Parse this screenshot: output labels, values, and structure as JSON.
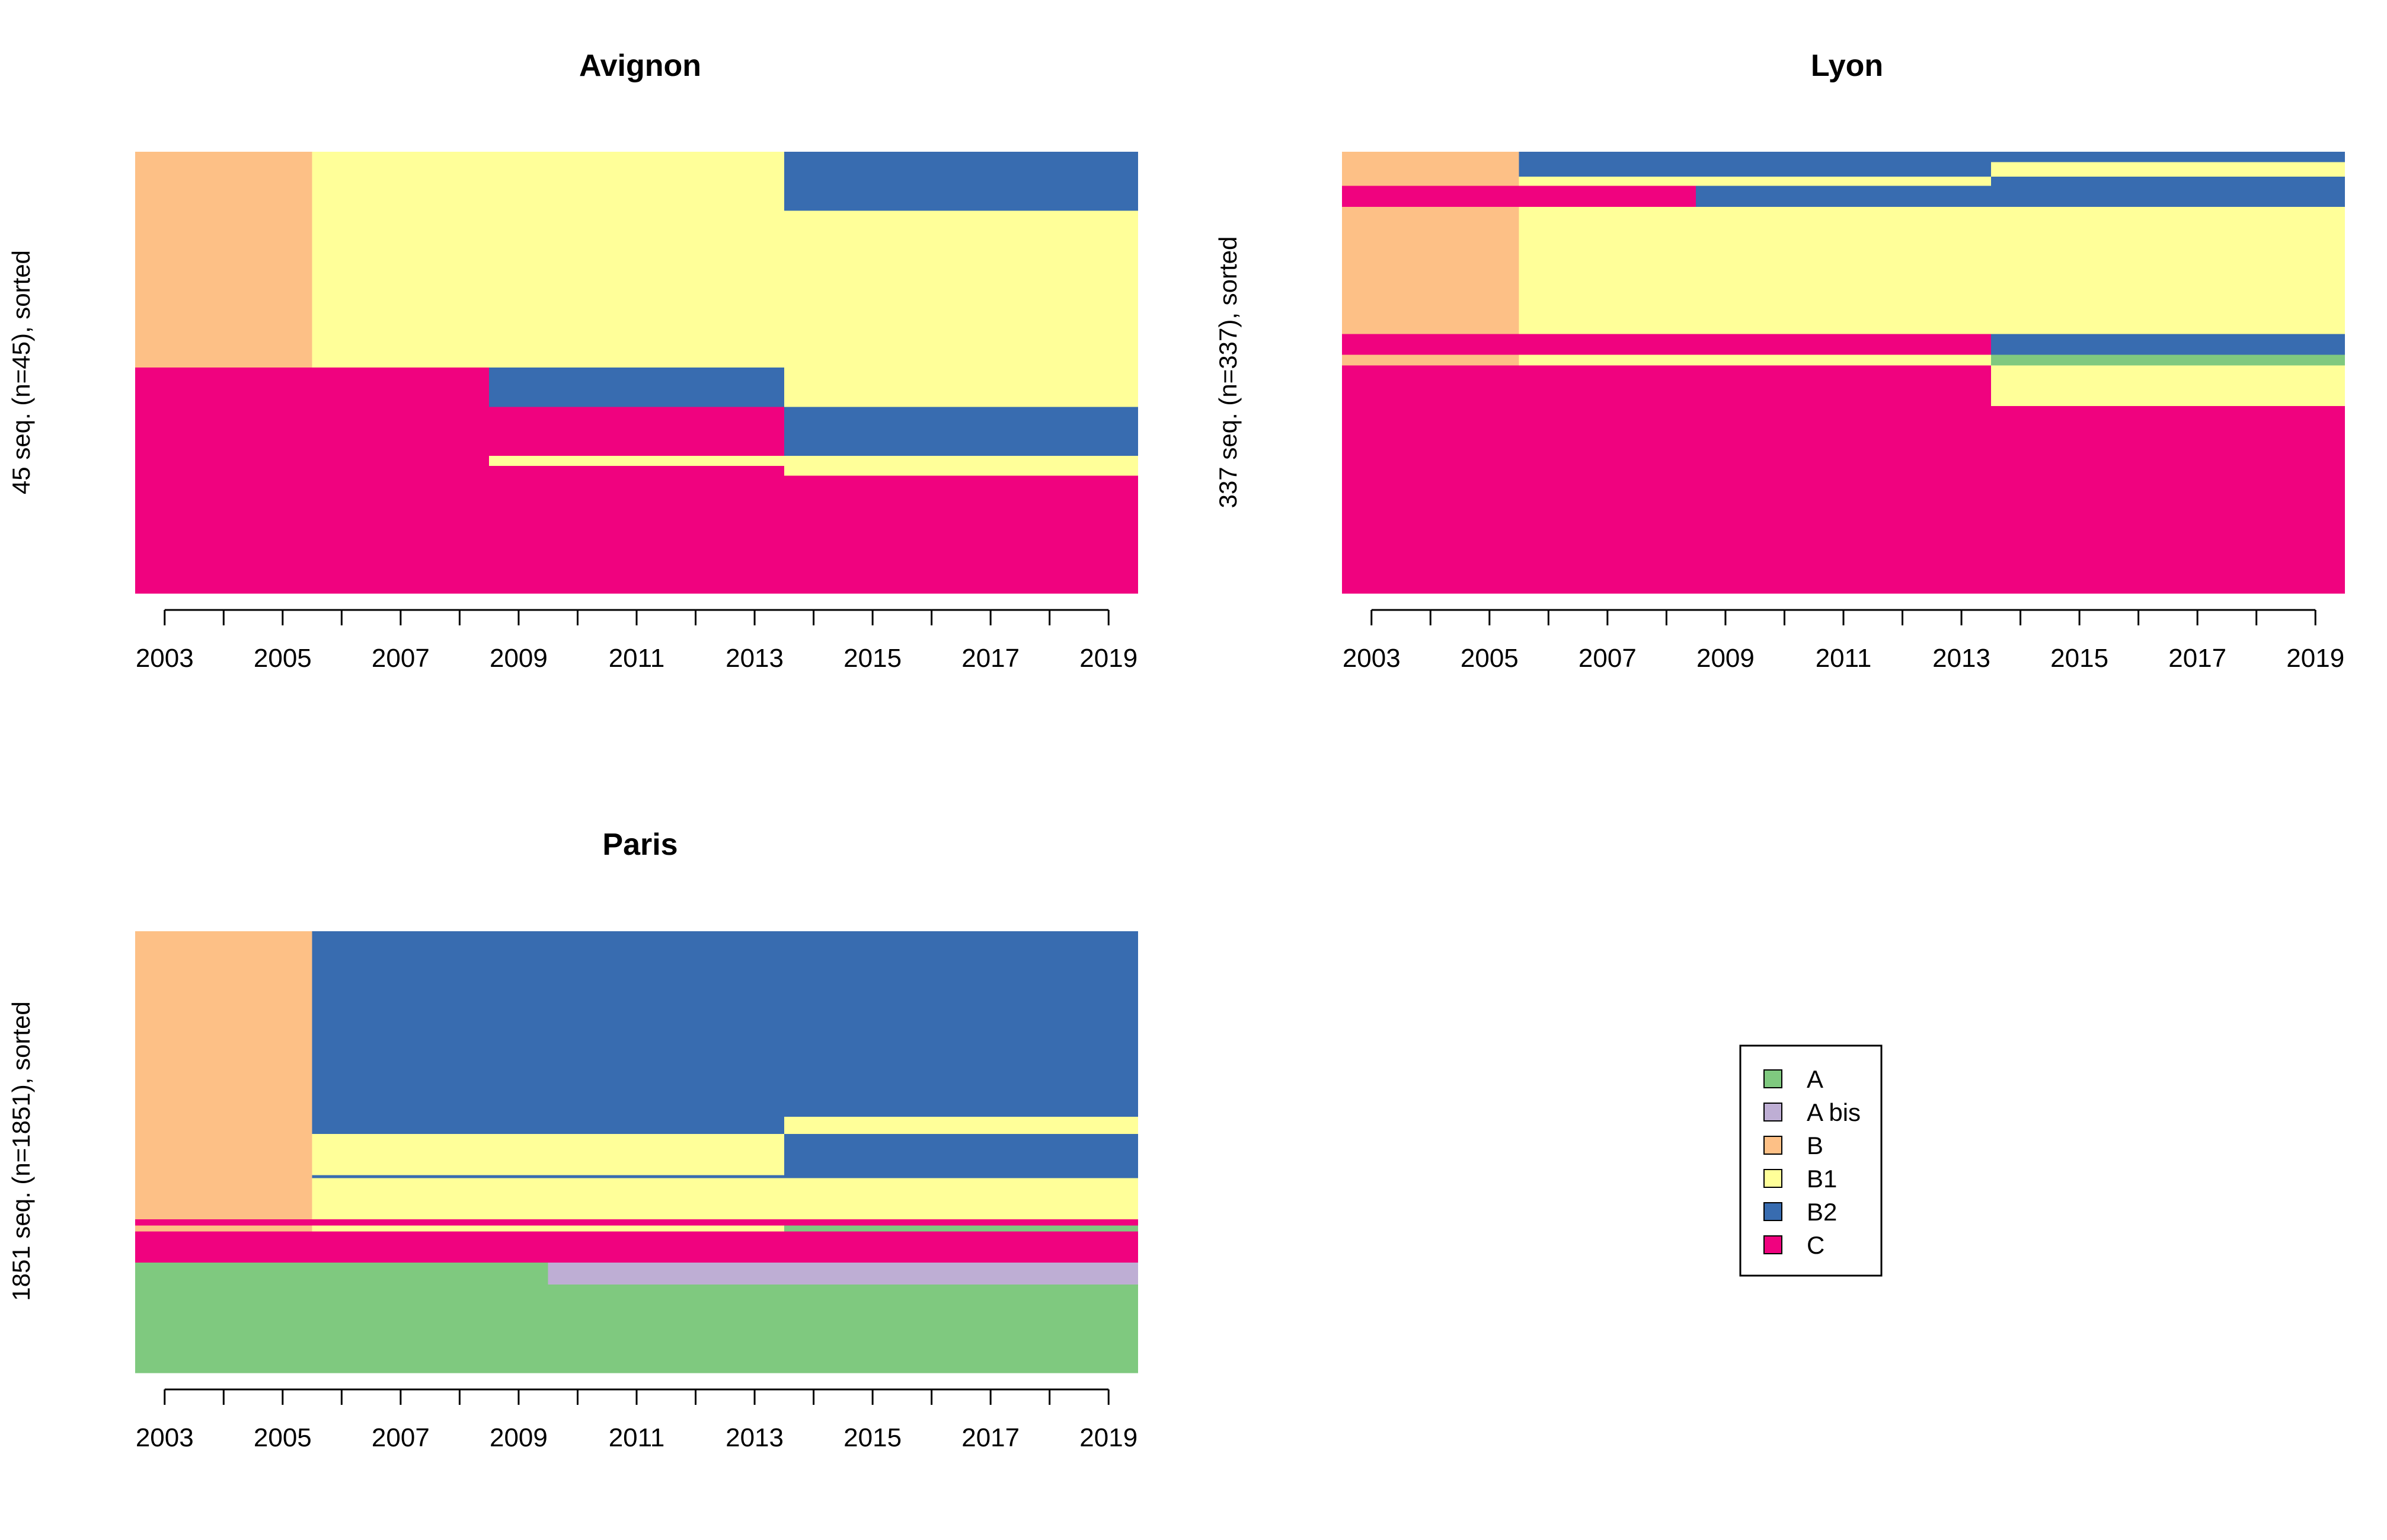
{
  "states": [
    {
      "code": "A",
      "label": "A",
      "color": "#7fc97f"
    },
    {
      "code": "A bis",
      "label": "A bis",
      "color": "#beaed4"
    },
    {
      "code": "B",
      "label": "B",
      "color": "#fdc086"
    },
    {
      "code": "B1",
      "label": "B1",
      "color": "#ffff99"
    },
    {
      "code": "B2",
      "label": "B2",
      "color": "#386cb0"
    },
    {
      "code": "C",
      "label": "C",
      "color": "#f0027f"
    }
  ],
  "chart_data": [
    {
      "type": "heatmap",
      "title": "Avignon",
      "ylabel": "45 seq. (n=45), sorted",
      "xlim": [
        2002.5,
        2019.5
      ],
      "xticks": [
        2003,
        2005,
        2007,
        2009,
        2011,
        2013,
        2015,
        2017,
        2019
      ],
      "ticks": [
        2003,
        2004,
        2005,
        2006,
        2007,
        2008,
        2009,
        2010,
        2011,
        2012,
        2013,
        2014,
        2015,
        2016,
        2017,
        2018,
        2019
      ],
      "total_sequences": 45,
      "rows": [
        {
          "count": 6,
          "segments": [
            {
              "from": 2002.5,
              "to": 2005.5,
              "state": "B"
            },
            {
              "from": 2005.5,
              "to": 2013.5,
              "state": "B1"
            },
            {
              "from": 2013.5,
              "to": 2019.5,
              "state": "B2"
            }
          ]
        },
        {
          "count": 16,
          "segments": [
            {
              "from": 2002.5,
              "to": 2005.5,
              "state": "B"
            },
            {
              "from": 2005.5,
              "to": 2019.5,
              "state": "B1"
            }
          ]
        },
        {
          "count": 4,
          "segments": [
            {
              "from": 2002.5,
              "to": 2008.5,
              "state": "C"
            },
            {
              "from": 2008.5,
              "to": 2013.5,
              "state": "B2"
            },
            {
              "from": 2013.5,
              "to": 2019.5,
              "state": "B1"
            }
          ]
        },
        {
          "count": 5,
          "segments": [
            {
              "from": 2002.5,
              "to": 2008.5,
              "state": "C"
            },
            {
              "from": 2008.5,
              "to": 2013.5,
              "state": "C"
            },
            {
              "from": 2013.5,
              "to": 2019.5,
              "state": "B2"
            }
          ]
        },
        {
          "count": 1,
          "segments": [
            {
              "from": 2002.5,
              "to": 2008.5,
              "state": "C"
            },
            {
              "from": 2008.5,
              "to": 2013.5,
              "state": "B1"
            },
            {
              "from": 2013.5,
              "to": 2019.5,
              "state": "B1"
            }
          ]
        },
        {
          "count": 1,
          "segments": [
            {
              "from": 2002.5,
              "to": 2013.5,
              "state": "C"
            },
            {
              "from": 2013.5,
              "to": 2019.5,
              "state": "B1"
            }
          ]
        },
        {
          "count": 12,
          "segments": [
            {
              "from": 2002.5,
              "to": 2019.5,
              "state": "C"
            }
          ]
        }
      ]
    },
    {
      "type": "heatmap",
      "title": "Lyon",
      "ylabel": "337 seq. (n=337), sorted",
      "xlim": [
        2002.5,
        2019.5
      ],
      "xticks": [
        2003,
        2005,
        2007,
        2009,
        2011,
        2013,
        2015,
        2017,
        2019
      ],
      "ticks": [
        2003,
        2004,
        2005,
        2006,
        2007,
        2008,
        2009,
        2010,
        2011,
        2012,
        2013,
        2014,
        2015,
        2016,
        2017,
        2018,
        2019
      ],
      "total_sequences": 337,
      "rows": [
        {
          "count": 8,
          "segments": [
            {
              "from": 2002.5,
              "to": 2005.5,
              "state": "B"
            },
            {
              "from": 2005.5,
              "to": 2019.5,
              "state": "B2"
            }
          ]
        },
        {
          "count": 11,
          "segments": [
            {
              "from": 2002.5,
              "to": 2005.5,
              "state": "B"
            },
            {
              "from": 2005.5,
              "to": 2013.5,
              "state": "B2"
            },
            {
              "from": 2013.5,
              "to": 2019.5,
              "state": "B1"
            }
          ]
        },
        {
          "count": 7,
          "segments": [
            {
              "from": 2002.5,
              "to": 2005.5,
              "state": "B"
            },
            {
              "from": 2005.5,
              "to": 2013.5,
              "state": "B1"
            },
            {
              "from": 2013.5,
              "to": 2019.5,
              "state": "B2"
            }
          ]
        },
        {
          "count": 16,
          "segments": [
            {
              "from": 2002.5,
              "to": 2008.5,
              "state": "C"
            },
            {
              "from": 2008.5,
              "to": 2019.5,
              "state": "B2"
            }
          ]
        },
        {
          "count": 97,
          "segments": [
            {
              "from": 2002.5,
              "to": 2005.5,
              "state": "B"
            },
            {
              "from": 2005.5,
              "to": 2019.5,
              "state": "B1"
            }
          ]
        },
        {
          "count": 16,
          "segments": [
            {
              "from": 2002.5,
              "to": 2013.5,
              "state": "C"
            },
            {
              "from": 2013.5,
              "to": 2019.5,
              "state": "B2"
            }
          ]
        },
        {
          "count": 8,
          "segments": [
            {
              "from": 2002.5,
              "to": 2005.5,
              "state": "B"
            },
            {
              "from": 2005.5,
              "to": 2013.5,
              "state": "B1"
            },
            {
              "from": 2013.5,
              "to": 2019.5,
              "state": "A"
            }
          ]
        },
        {
          "count": 31,
          "segments": [
            {
              "from": 2002.5,
              "to": 2013.5,
              "state": "C"
            },
            {
              "from": 2013.5,
              "to": 2019.5,
              "state": "B1"
            }
          ]
        },
        {
          "count": 143,
          "segments": [
            {
              "from": 2002.5,
              "to": 2019.5,
              "state": "C"
            }
          ]
        }
      ]
    },
    {
      "type": "heatmap",
      "title": "Paris",
      "ylabel": "1851 seq. (n=1851), sorted",
      "xlim": [
        2002.5,
        2019.5
      ],
      "xticks": [
        2003,
        2005,
        2007,
        2009,
        2011,
        2013,
        2015,
        2017,
        2019
      ],
      "ticks": [
        2003,
        2004,
        2005,
        2006,
        2007,
        2008,
        2009,
        2010,
        2011,
        2012,
        2013,
        2014,
        2015,
        2016,
        2017,
        2018,
        2019
      ],
      "total_sequences": 1851,
      "rows": [
        {
          "count": 778,
          "segments": [
            {
              "from": 2002.5,
              "to": 2005.5,
              "state": "B"
            },
            {
              "from": 2005.5,
              "to": 2019.5,
              "state": "B2"
            }
          ]
        },
        {
          "count": 72,
          "segments": [
            {
              "from": 2002.5,
              "to": 2005.5,
              "state": "B"
            },
            {
              "from": 2005.5,
              "to": 2013.5,
              "state": "B2"
            },
            {
              "from": 2013.5,
              "to": 2019.5,
              "state": "B1"
            }
          ]
        },
        {
          "count": 172,
          "segments": [
            {
              "from": 2002.5,
              "to": 2005.5,
              "state": "B"
            },
            {
              "from": 2005.5,
              "to": 2013.5,
              "state": "B1"
            },
            {
              "from": 2013.5,
              "to": 2019.5,
              "state": "B2"
            }
          ]
        },
        {
          "count": 13,
          "segments": [
            {
              "from": 2002.5,
              "to": 2005.5,
              "state": "B"
            },
            {
              "from": 2005.5,
              "to": 2019.5,
              "state": "B2"
            }
          ]
        },
        {
          "count": 172,
          "segments": [
            {
              "from": 2002.5,
              "to": 2005.5,
              "state": "B"
            },
            {
              "from": 2005.5,
              "to": 2019.5,
              "state": "B1"
            }
          ]
        },
        {
          "count": 26,
          "segments": [
            {
              "from": 2002.5,
              "to": 2019.5,
              "state": "C"
            }
          ]
        },
        {
          "count": 26,
          "segments": [
            {
              "from": 2002.5,
              "to": 2005.5,
              "state": "B"
            },
            {
              "from": 2005.5,
              "to": 2013.5,
              "state": "B1"
            },
            {
              "from": 2013.5,
              "to": 2019.5,
              "state": "A"
            }
          ]
        },
        {
          "count": 130,
          "segments": [
            {
              "from": 2002.5,
              "to": 2019.5,
              "state": "C"
            }
          ]
        },
        {
          "count": 92,
          "segments": [
            {
              "from": 2002.5,
              "to": 2009.5,
              "state": "A"
            },
            {
              "from": 2009.5,
              "to": 2019.5,
              "state": "A bis"
            }
          ]
        },
        {
          "count": 370,
          "segments": [
            {
              "from": 2002.5,
              "to": 2019.5,
              "state": "A"
            }
          ]
        }
      ]
    }
  ]
}
